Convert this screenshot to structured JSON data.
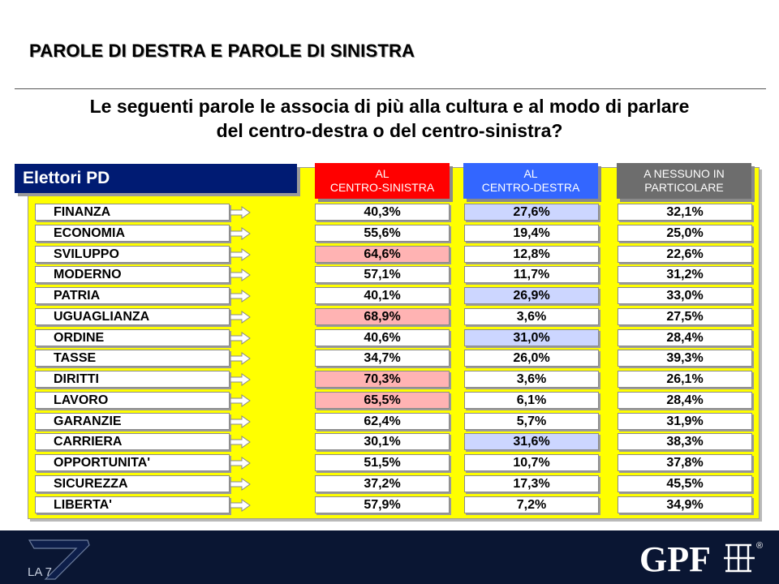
{
  "title": "PAROLE DI DESTRA E PAROLE DI SINISTRA",
  "question": "Le seguenti parole le associa di più alla cultura e al modo di parlare\ndel centro-destra o del centro-sinistra?",
  "group_label": "Elettori PD",
  "colors": {
    "panel": "#ffff00",
    "group_label": "#001b73",
    "header_centro_sinistra": "#ff0000",
    "header_centro_destra": "#3366ff",
    "header_nessuno": "#6d6d6d",
    "highlight_centro_sinistra": "#ffb3b3",
    "highlight_centro_destra": "#ccd6ff",
    "footer": "#0a1633"
  },
  "chart_data": {
    "type": "table",
    "columns": [
      "AL\nCENTRO-SINISTRA",
      "AL\nCENTRO-DESTRA",
      "A NESSUNO IN\nPARTICOLARE"
    ],
    "rows": [
      {
        "label": "FINANZA",
        "centro_sinistra": "40,3%",
        "centro_destra": "27,6%",
        "nessuno": "32,1%",
        "highlight": "dx"
      },
      {
        "label": "ECONOMIA",
        "centro_sinistra": "55,6%",
        "centro_destra": "19,4%",
        "nessuno": "25,0%",
        "highlight": ""
      },
      {
        "label": "SVILUPPO",
        "centro_sinistra": "64,6%",
        "centro_destra": "12,8%",
        "nessuno": "22,6%",
        "highlight": "sx"
      },
      {
        "label": "MODERNO",
        "centro_sinistra": "57,1%",
        "centro_destra": "11,7%",
        "nessuno": "31,2%",
        "highlight": ""
      },
      {
        "label": "PATRIA",
        "centro_sinistra": "40,1%",
        "centro_destra": "26,9%",
        "nessuno": "33,0%",
        "highlight": "dx"
      },
      {
        "label": "UGUAGLIANZA",
        "centro_sinistra": "68,9%",
        "centro_destra": "3,6%",
        "nessuno": "27,5%",
        "highlight": "sx"
      },
      {
        "label": "ORDINE",
        "centro_sinistra": "40,6%",
        "centro_destra": "31,0%",
        "nessuno": "28,4%",
        "highlight": "dx"
      },
      {
        "label": "TASSE",
        "centro_sinistra": "34,7%",
        "centro_destra": "26,0%",
        "nessuno": "39,3%",
        "highlight": ""
      },
      {
        "label": "DIRITTI",
        "centro_sinistra": "70,3%",
        "centro_destra": "3,6%",
        "nessuno": "26,1%",
        "highlight": "sx"
      },
      {
        "label": "LAVORO",
        "centro_sinistra": "65,5%",
        "centro_destra": "6,1%",
        "nessuno": "28,4%",
        "highlight": "sx"
      },
      {
        "label": "GARANZIE",
        "centro_sinistra": "62,4%",
        "centro_destra": "5,7%",
        "nessuno": "31,9%",
        "highlight": ""
      },
      {
        "label": "CARRIERA",
        "centro_sinistra": "30,1%",
        "centro_destra": "31,6%",
        "nessuno": "38,3%",
        "highlight": "dx"
      },
      {
        "label": "OPPORTUNITA'",
        "centro_sinistra": "51,5%",
        "centro_destra": "10,7%",
        "nessuno": "37,8%",
        "highlight": ""
      },
      {
        "label": "SICUREZZA",
        "centro_sinistra": "37,2%",
        "centro_destra": "17,3%",
        "nessuno": "45,5%",
        "highlight": ""
      },
      {
        "label": "LIBERTA'",
        "centro_sinistra": "57,9%",
        "centro_destra": "7,2%",
        "nessuno": "34,9%",
        "highlight": ""
      }
    ]
  },
  "footer": {
    "left_logo": "LA 7",
    "right_logo": "GPF",
    "right_logo_mark": "®"
  }
}
